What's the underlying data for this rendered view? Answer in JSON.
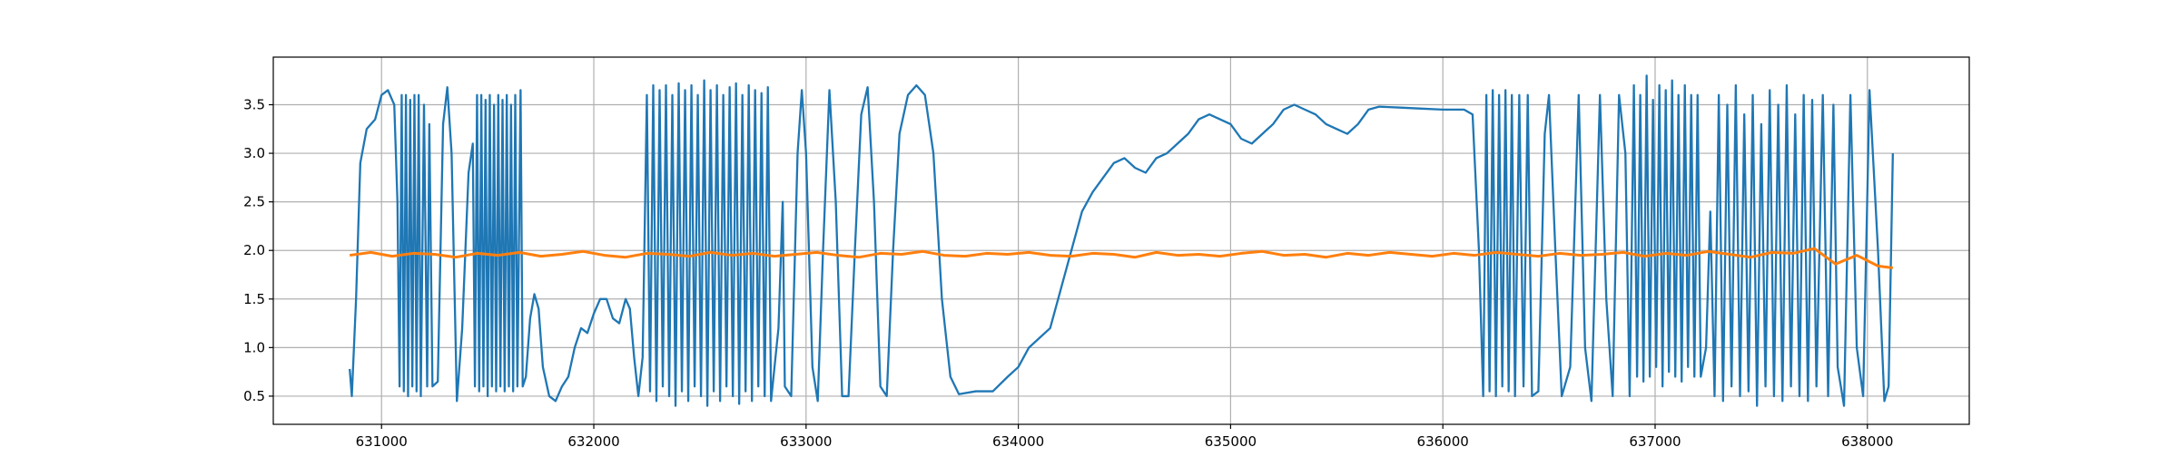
{
  "chart_data": {
    "type": "line",
    "xlim": [
      630490,
      638480
    ],
    "xticks": [
      631000,
      632000,
      633000,
      634000,
      635000,
      636000,
      637000,
      638000
    ],
    "ylim": [
      0.21,
      3.99
    ],
    "yticks": [
      0.5,
      {
        "value": 1.0,
        "label": "1.0"
      },
      1.5,
      {
        "value": 2.0,
        "label": "2.0"
      },
      2.5,
      {
        "value": 3.0,
        "label": "3.0"
      },
      3.5
    ],
    "grid": true,
    "series": [
      {
        "color": "#1f77b4",
        "x": [
          630850,
          630860,
          630880,
          630900,
          630930,
          630970,
          631000,
          631030,
          631060,
          631075,
          631085,
          631095,
          631105,
          631115,
          631125,
          631135,
          631145,
          631155,
          631165,
          631175,
          631185,
          631200,
          631215,
          631225,
          631240,
          631265,
          631290,
          631310,
          631330,
          631355,
          631380,
          631410,
          631430,
          631440,
          631450,
          631460,
          631470,
          631480,
          631490,
          631500,
          631510,
          631520,
          631530,
          631540,
          631550,
          631560,
          631570,
          631580,
          631590,
          631600,
          631610,
          631620,
          631630,
          631640,
          631655,
          631665,
          631680,
          631700,
          631720,
          631740,
          631760,
          631790,
          631820,
          631850,
          631880,
          631910,
          631940,
          631970,
          632000,
          632030,
          632060,
          632090,
          632120,
          632150,
          632170,
          632190,
          632210,
          632230,
          632250,
          632265,
          632280,
          632295,
          632310,
          632325,
          632340,
          632355,
          632370,
          632385,
          632400,
          632415,
          632430,
          632445,
          632460,
          632475,
          632490,
          632505,
          632520,
          632535,
          632550,
          632565,
          632580,
          632595,
          632610,
          632625,
          632640,
          632655,
          632670,
          632685,
          632700,
          632715,
          632730,
          632745,
          632760,
          632775,
          632790,
          632805,
          632820,
          632835,
          632870,
          632890,
          632900,
          632930,
          632960,
          632980,
          633000,
          633030,
          633055,
          633080,
          633110,
          633140,
          633170,
          633200,
          633230,
          633260,
          633290,
          633320,
          633350,
          633380,
          633410,
          633440,
          633480,
          633520,
          633560,
          633600,
          633640,
          633680,
          633720,
          633800,
          633880,
          633950,
          634000,
          634050,
          634100,
          634150,
          634200,
          634250,
          634300,
          634350,
          634400,
          634450,
          634500,
          634550,
          634600,
          634650,
          634700,
          634750,
          634800,
          634850,
          634900,
          634950,
          635000,
          635050,
          635100,
          635150,
          635200,
          635250,
          635300,
          635350,
          635400,
          635450,
          635500,
          635550,
          635600,
          635650,
          635700,
          635800,
          635900,
          636000,
          636100,
          636140,
          636170,
          636190,
          636205,
          636220,
          636235,
          636250,
          636265,
          636280,
          636295,
          636310,
          636325,
          636340,
          636360,
          636380,
          636400,
          636420,
          636450,
          636480,
          636500,
          636530,
          636560,
          636600,
          636640,
          636670,
          636700,
          636740,
          636770,
          636800,
          636830,
          636860,
          636880,
          636900,
          636915,
          636930,
          636945,
          636960,
          636975,
          636990,
          637005,
          637020,
          637035,
          637050,
          637065,
          637080,
          637095,
          637110,
          637125,
          637140,
          637155,
          637170,
          637185,
          637200,
          637215,
          637240,
          637260,
          637280,
          637300,
          637320,
          637340,
          637360,
          637380,
          637400,
          637420,
          637440,
          637460,
          637480,
          637500,
          637520,
          637540,
          637560,
          637580,
          637600,
          637620,
          637640,
          637660,
          637680,
          637700,
          637720,
          637740,
          637760,
          637790,
          637815,
          637840,
          637860,
          637890,
          637920,
          637950,
          637980,
          638010,
          638050,
          638080,
          638100,
          638120
        ],
        "values": [
          0.78,
          0.5,
          1.5,
          2.9,
          3.25,
          3.35,
          3.6,
          3.65,
          3.5,
          2.5,
          0.6,
          3.6,
          0.55,
          3.6,
          0.5,
          3.55,
          0.6,
          3.6,
          0.55,
          3.6,
          0.5,
          3.5,
          0.6,
          3.3,
          0.6,
          0.65,
          3.3,
          3.68,
          3.0,
          0.45,
          1.2,
          2.8,
          3.1,
          0.6,
          3.6,
          0.55,
          3.6,
          0.6,
          3.55,
          0.5,
          3.6,
          0.6,
          3.5,
          0.55,
          3.6,
          0.6,
          3.55,
          0.55,
          3.6,
          0.6,
          3.5,
          0.55,
          3.6,
          0.6,
          3.65,
          0.6,
          0.7,
          1.3,
          1.55,
          1.4,
          0.8,
          0.5,
          0.45,
          0.6,
          0.7,
          1.0,
          1.2,
          1.15,
          1.35,
          1.5,
          1.5,
          1.3,
          1.25,
          1.5,
          1.4,
          0.9,
          0.5,
          0.9,
          3.6,
          0.55,
          3.7,
          0.45,
          3.65,
          0.6,
          3.7,
          0.5,
          3.6,
          0.4,
          3.72,
          0.55,
          3.65,
          0.45,
          3.7,
          0.6,
          3.6,
          0.5,
          3.75,
          0.4,
          3.65,
          0.55,
          3.7,
          0.45,
          3.6,
          0.6,
          3.68,
          0.5,
          3.72,
          0.42,
          3.6,
          0.55,
          3.7,
          0.45,
          3.65,
          0.6,
          3.62,
          0.5,
          3.68,
          0.45,
          1.2,
          2.5,
          0.6,
          0.5,
          3.0,
          3.65,
          3.0,
          0.8,
          0.45,
          2.0,
          3.65,
          2.5,
          0.5,
          0.5,
          2.0,
          3.4,
          3.68,
          2.5,
          0.6,
          0.5,
          2.0,
          3.2,
          3.6,
          3.7,
          3.6,
          3.0,
          1.5,
          0.7,
          0.52,
          0.55,
          0.55,
          0.7,
          0.8,
          1.0,
          1.1,
          1.2,
          1.6,
          2.0,
          2.4,
          2.6,
          2.75,
          2.9,
          2.95,
          2.85,
          2.8,
          2.95,
          3.0,
          3.1,
          3.2,
          3.35,
          3.4,
          3.35,
          3.3,
          3.15,
          3.1,
          3.2,
          3.3,
          3.45,
          3.5,
          3.45,
          3.4,
          3.3,
          3.25,
          3.2,
          3.3,
          3.45,
          3.48,
          3.47,
          3.46,
          3.45,
          3.45,
          3.4,
          2.0,
          0.5,
          3.6,
          0.55,
          3.65,
          0.5,
          3.6,
          0.6,
          3.65,
          0.55,
          3.6,
          0.5,
          3.6,
          0.6,
          3.6,
          0.5,
          0.55,
          3.2,
          3.6,
          2.0,
          0.5,
          0.8,
          3.6,
          1.0,
          0.45,
          3.6,
          1.5,
          0.5,
          3.6,
          3.0,
          0.5,
          3.7,
          0.7,
          3.6,
          0.65,
          3.8,
          0.7,
          3.55,
          0.8,
          3.7,
          0.6,
          3.65,
          0.75,
          3.75,
          0.7,
          3.6,
          0.65,
          3.7,
          0.8,
          3.6,
          0.7,
          3.6,
          0.7,
          1.0,
          2.4,
          0.5,
          3.6,
          0.45,
          3.5,
          0.6,
          3.7,
          0.5,
          3.4,
          0.55,
          3.6,
          0.4,
          3.3,
          0.6,
          3.65,
          0.5,
          3.5,
          0.45,
          3.7,
          0.6,
          3.4,
          0.5,
          3.6,
          0.45,
          3.55,
          0.6,
          3.6,
          0.5,
          3.5,
          0.8,
          0.4,
          3.6,
          1.0,
          0.5,
          3.65,
          2.0,
          0.45,
          0.6,
          3.0
        ]
      },
      {
        "color": "#ff7f0e",
        "x": [
          630850,
          630950,
          631050,
          631150,
          631250,
          631350,
          631450,
          631550,
          631650,
          631750,
          631850,
          631950,
          632050,
          632150,
          632250,
          632350,
          632450,
          632550,
          632650,
          632750,
          632850,
          632950,
          633050,
          633150,
          633250,
          633350,
          633450,
          633550,
          633650,
          633750,
          633850,
          633950,
          634050,
          634150,
          634250,
          634350,
          634450,
          634550,
          634650,
          634750,
          634850,
          634950,
          635050,
          635150,
          635250,
          635350,
          635450,
          635550,
          635650,
          635750,
          635850,
          635950,
          636050,
          636150,
          636250,
          636350,
          636450,
          636550,
          636650,
          636750,
          636850,
          636950,
          637050,
          637150,
          637250,
          637350,
          637450,
          637550,
          637650,
          637750,
          637850,
          637950,
          638050,
          638120
        ],
        "values": [
          1.95,
          1.98,
          1.94,
          1.97,
          1.96,
          1.93,
          1.97,
          1.95,
          1.98,
          1.94,
          1.96,
          1.99,
          1.95,
          1.93,
          1.97,
          1.96,
          1.94,
          1.98,
          1.95,
          1.97,
          1.94,
          1.96,
          1.98,
          1.95,
          1.93,
          1.97,
          1.96,
          1.99,
          1.95,
          1.94,
          1.97,
          1.96,
          1.98,
          1.95,
          1.94,
          1.97,
          1.96,
          1.93,
          1.98,
          1.95,
          1.96,
          1.94,
          1.97,
          1.99,
          1.95,
          1.96,
          1.93,
          1.97,
          1.95,
          1.98,
          1.96,
          1.94,
          1.97,
          1.95,
          1.98,
          1.96,
          1.94,
          1.97,
          1.95,
          1.96,
          1.98,
          1.94,
          1.97,
          1.95,
          1.99,
          1.96,
          1.93,
          1.98,
          1.97,
          2.02,
          1.86,
          1.95,
          1.84,
          1.82
        ]
      }
    ]
  }
}
